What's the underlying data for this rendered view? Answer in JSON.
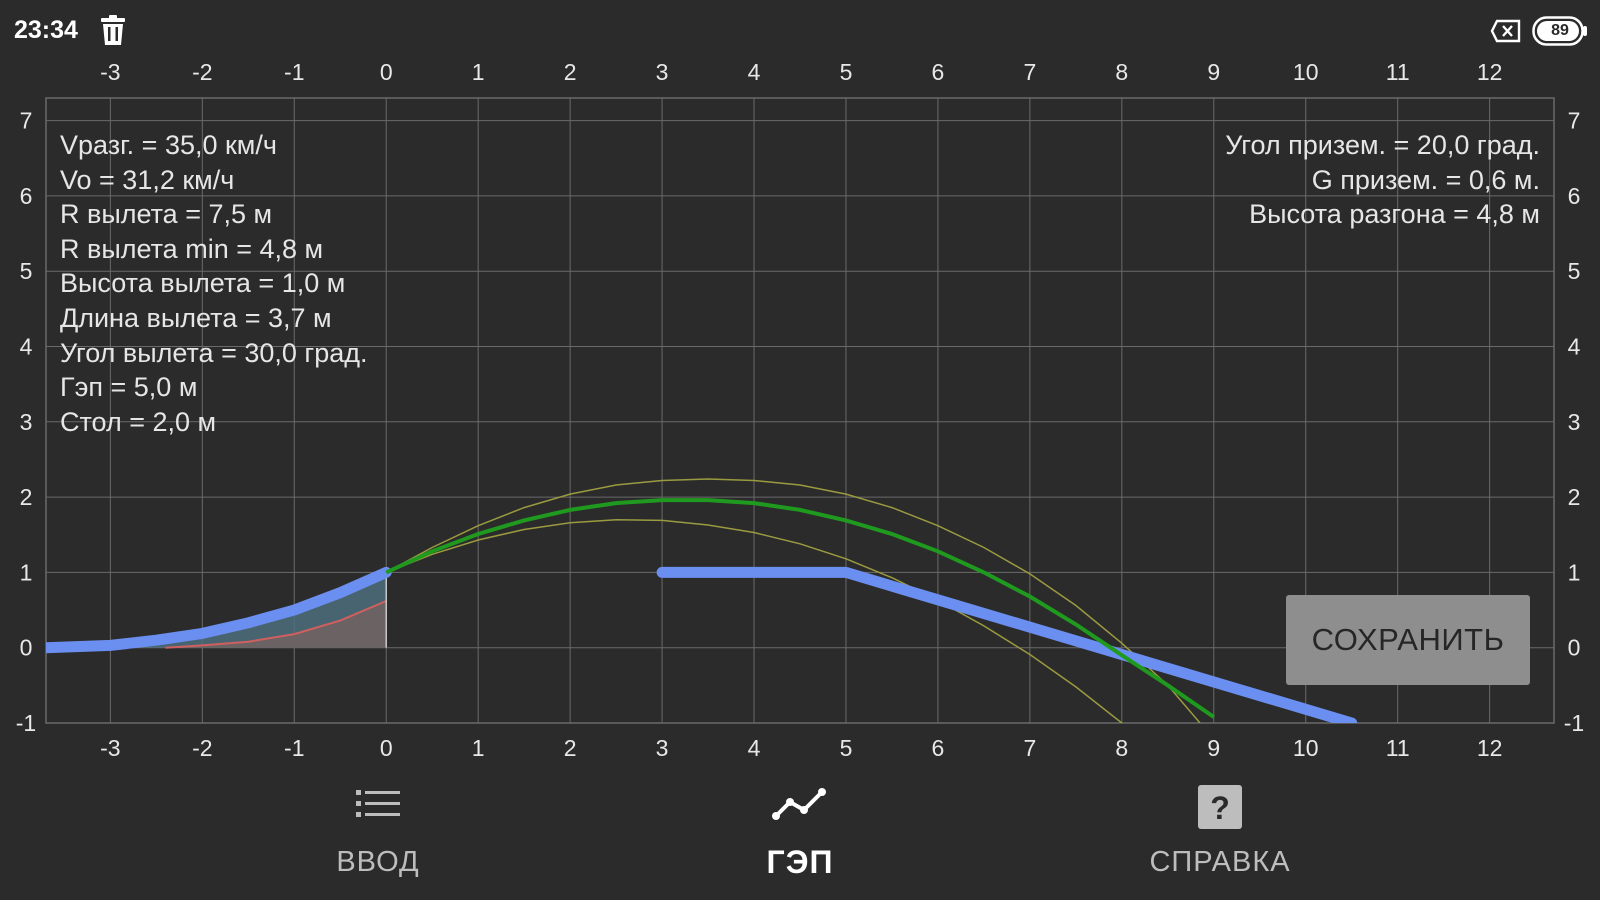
{
  "status_bar": {
    "time": "23:34",
    "trash_icon": "trash-icon",
    "sim_icon": "sim-card-x-icon",
    "battery_icon": "battery-icon",
    "battery_level": "89"
  },
  "info_left": [
    "Vразг. = 35,0 км/ч",
    "Vo = 31,2 км/ч",
    "R вылета = 7,5 м",
    "R вылета min = 4,8 м",
    "Высота вылета = 1,0 м",
    "Длина вылета = 3,7 м",
    "Угол вылета = 30,0 град.",
    "Гэп = 5,0 м",
    "Стол = 2,0 м"
  ],
  "info_right": [
    "Угол призем. = 20,0 град.",
    "G призем. = 0,6 м.",
    "Высота разгона = 4,8 м"
  ],
  "save_button": {
    "label": "СОХРАНИТЬ"
  },
  "nav": {
    "items": [
      {
        "label": "ВВОД",
        "icon": "list-icon",
        "active": false
      },
      {
        "label": "ГЭП",
        "icon": "chart-line-icon",
        "active": true
      },
      {
        "label": "СПРАВКА",
        "icon": "help-icon",
        "active": false
      }
    ]
  },
  "colors": {
    "background": "#2b2b2b",
    "grid": "#6a6a6a",
    "profile": "#6b8ff0",
    "trajectory": "#1f9a1f",
    "trajectory_bounds": "#9a9a40",
    "kicker_fill": "#6e6262",
    "kicker_line": "#d06060"
  },
  "chart_data": {
    "type": "line",
    "x_ticks": [
      -3,
      -2,
      -1,
      0,
      1,
      2,
      3,
      4,
      5,
      6,
      7,
      8,
      9,
      10,
      11,
      12
    ],
    "y_ticks": [
      -1,
      0,
      1,
      2,
      3,
      4,
      5,
      6,
      7
    ],
    "xlim": [
      -3.7,
      12.7
    ],
    "ylim": [
      -1,
      7.3
    ],
    "grid": true,
    "series": [
      {
        "kind": "takeoff-ramp",
        "x": [
          -3.7,
          -3,
          -2.5,
          -2,
          -1.5,
          -1,
          -0.5,
          0
        ],
        "y": [
          0,
          0.03,
          0.1,
          0.19,
          0.33,
          0.5,
          0.73,
          1.0
        ]
      },
      {
        "kind": "takeoff-ramp-min",
        "x": [
          -2.4,
          -2,
          -1.5,
          -1,
          -0.5,
          0
        ],
        "y": [
          0,
          0.03,
          0.08,
          0.18,
          0.36,
          0.62
        ]
      },
      {
        "kind": "landing-profile",
        "x": [
          3,
          5,
          10.5
        ],
        "y": [
          1.0,
          1.0,
          -1.0
        ]
      },
      {
        "kind": "trajectory",
        "x": [
          0,
          0.5,
          1,
          1.5,
          2,
          2.5,
          3,
          3.5,
          4,
          4.5,
          5,
          5.5,
          6,
          6.5,
          7,
          7.5,
          8,
          8.5,
          9
        ],
        "y": [
          1.0,
          1.28,
          1.51,
          1.69,
          1.83,
          1.92,
          1.96,
          1.96,
          1.92,
          1.83,
          1.69,
          1.51,
          1.28,
          1.0,
          0.68,
          0.31,
          -0.1,
          -0.5,
          -0.92
        ]
      },
      {
        "kind": "trajectory-upper",
        "x": [
          0,
          0.5,
          1,
          1.5,
          2,
          2.5,
          3,
          3.5,
          4,
          4.5,
          5,
          5.5,
          6,
          6.5,
          7,
          7.5,
          8,
          8.5,
          8.85
        ],
        "y": [
          1.0,
          1.33,
          1.62,
          1.86,
          2.04,
          2.16,
          2.22,
          2.24,
          2.22,
          2.16,
          2.04,
          1.86,
          1.62,
          1.33,
          0.98,
          0.56,
          0.06,
          -0.5,
          -1.0
        ]
      },
      {
        "kind": "trajectory-lower",
        "x": [
          0,
          0.5,
          1,
          1.5,
          2,
          2.5,
          3,
          3.5,
          4,
          4.5,
          5,
          5.5,
          6,
          6.5,
          7,
          7.5,
          8,
          8.5,
          8.8
        ],
        "y": [
          1.0,
          1.24,
          1.43,
          1.57,
          1.66,
          1.7,
          1.69,
          1.63,
          1.53,
          1.38,
          1.18,
          0.93,
          0.63,
          0.29,
          -0.09,
          -0.52,
          -1.0,
          -1.5,
          -1.82
        ]
      }
    ]
  }
}
